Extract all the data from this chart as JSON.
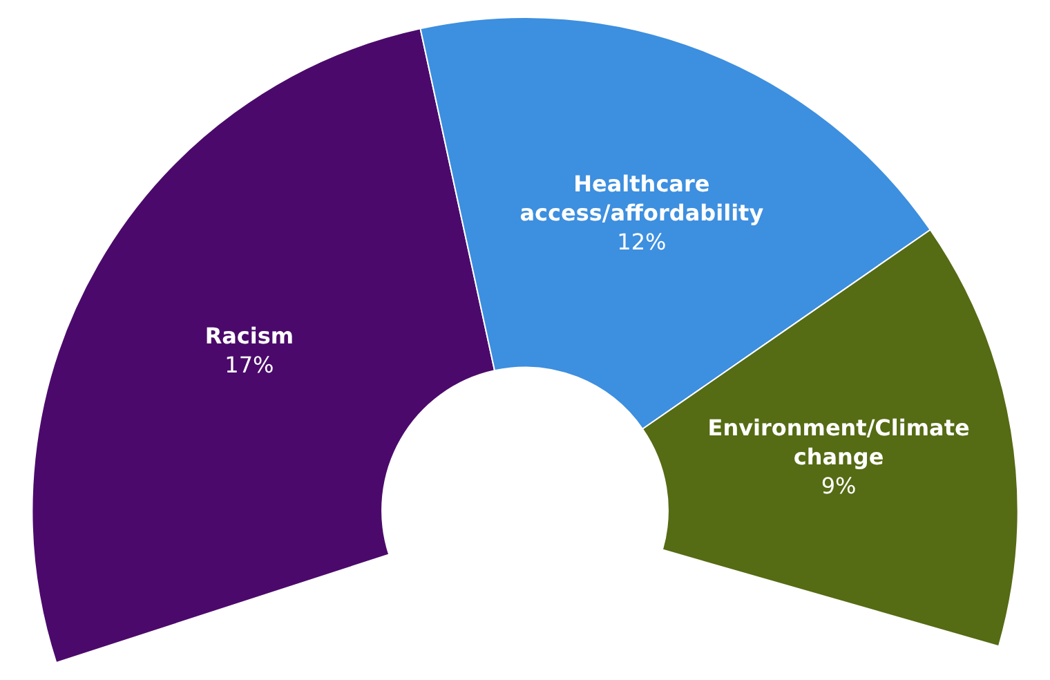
{
  "chart_data": {
    "type": "donut",
    "categories": [
      "Racism",
      "Healthcare access/affordability",
      "Environment/Climate change"
    ],
    "values": [
      17,
      12,
      9
    ],
    "colors": [
      "#4b0a6b",
      "#3d8fdf",
      "#556b14"
    ],
    "value_labels": [
      "17%",
      "12%",
      "9%"
    ]
  }
}
